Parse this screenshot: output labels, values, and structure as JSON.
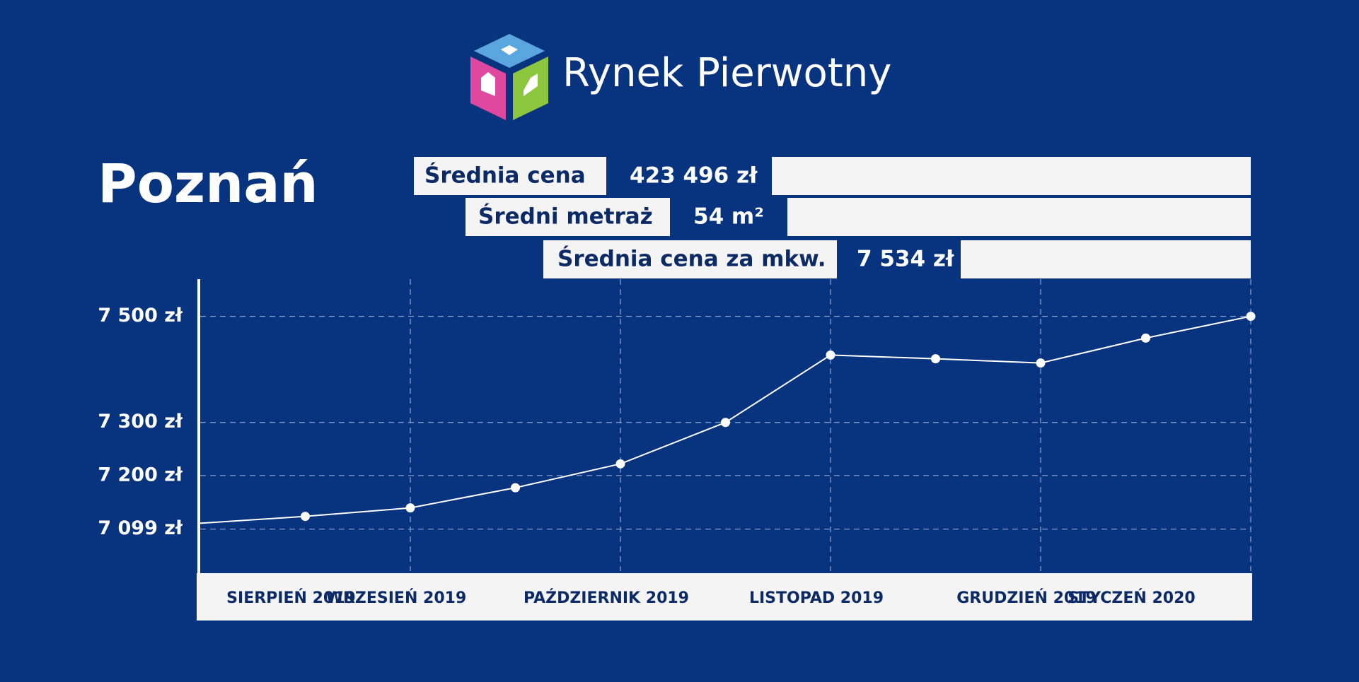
{
  "logo": {
    "text": "Rynek Pierwotny"
  },
  "city": "Poznań",
  "stats": [
    {
      "label": "Średnia cena",
      "value": "423 496 zł"
    },
    {
      "label": "Średni metraż",
      "value": "54 m²"
    },
    {
      "label": "Średnia cena za mkw.",
      "value": "7 534 zł"
    }
  ],
  "chart_data": {
    "type": "line",
    "categories": [
      null,
      "SIERPIEŃ 2019",
      "WRZESIEŃ 2019",
      null,
      "PAŹDZIERNIK 2019",
      null,
      "LISTOPAD 2019",
      null,
      "GRUDZIEŃ 2019",
      "STYCZEŃ 2020",
      null
    ],
    "values": [
      7110,
      7123,
      7139,
      7177,
      7222,
      7300,
      7427,
      7420,
      7412,
      7459,
      7500
    ],
    "color": "#ffffff",
    "ylim": [
      7020,
      7570
    ],
    "yticks": [
      {
        "value": 7099,
        "label": "7 099 zł"
      },
      {
        "value": 7200,
        "label": "7 200 zł"
      },
      {
        "value": 7300,
        "label": "7 300 zł"
      },
      {
        "value": 7500,
        "label": "7 500 zł"
      }
    ],
    "grid": true
  }
}
